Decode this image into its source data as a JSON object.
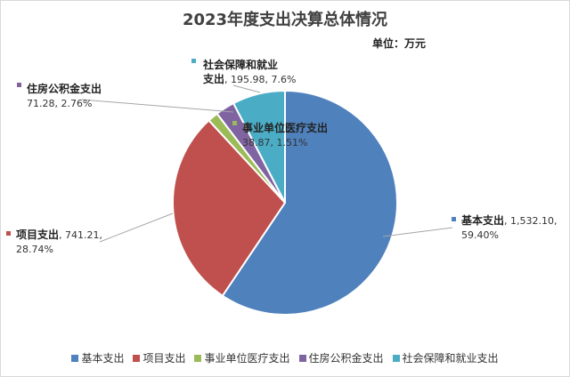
{
  "chart_data": {
    "type": "pie",
    "title": "2023年度支出决算总体情况",
    "unit_label": "单位：万元",
    "slices": [
      {
        "name": "基本支出",
        "value": 1532.1,
        "value_label": "1,532.10",
        "percent": 59.4,
        "percent_label": "59.40%",
        "color": "#4F81BD"
      },
      {
        "name": "项目支出",
        "value": 741.21,
        "value_label": "741.21",
        "percent": 28.74,
        "percent_label": "28.74%",
        "color": "#C0504D"
      },
      {
        "name": "事业单位医疗支出",
        "value": 38.87,
        "value_label": "38.87",
        "percent": 1.51,
        "percent_label": "1.51%",
        "color": "#9BBB59"
      },
      {
        "name": "住房公积金支出",
        "value": 71.28,
        "value_label": "71.28",
        "percent": 2.76,
        "percent_label": "2.76%",
        "color": "#8064A2"
      },
      {
        "name": "社会保障和就业支出",
        "value": 195.98,
        "value_label": "195.98",
        "percent": 7.6,
        "percent_label": "7.6%",
        "color": "#4BACC6"
      }
    ],
    "legend_position": "bottom"
  }
}
